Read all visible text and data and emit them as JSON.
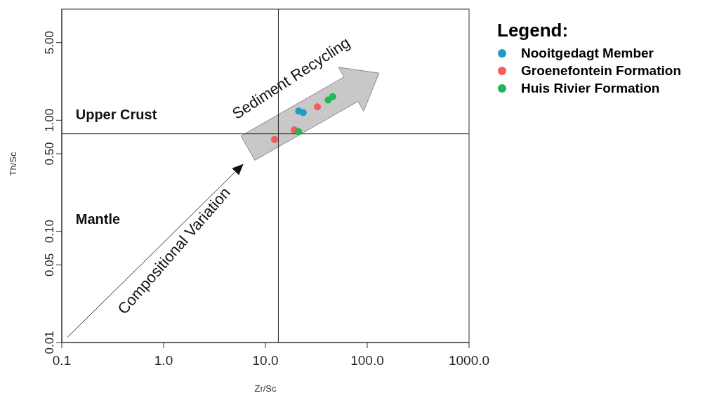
{
  "chart_data": {
    "type": "scatter",
    "xlabel": "Zr/Sc",
    "ylabel": "Th/Sc",
    "legend_title": "Legend:",
    "log": "xy",
    "marker": "circle",
    "legend": "top right",
    "xlim": [
      0.1,
      1000
    ],
    "xticks": [
      0.1,
      {
        "value": 1,
        "label": "1.0"
      },
      {
        "value": 10,
        "label": "10.0"
      },
      {
        "value": 100,
        "label": "100.0"
      },
      {
        "value": 1000,
        "label": "1000.0"
      }
    ],
    "ylim": [
      0.01,
      10
    ],
    "yticks": [
      0.01,
      0.05,
      {
        "value": 0.1,
        "label": "0.10"
      },
      {
        "value": 0.5,
        "label": "0.50"
      },
      {
        "value": 1,
        "label": "1.00"
      },
      {
        "value": 5,
        "label": "5.00"
      }
    ],
    "series": [
      {
        "name": "Nooitgedagt Member",
        "color": "#1f9cc4",
        "x": [
          21.2,
          23.5
        ],
        "values": [
          1.21,
          1.17
        ]
      },
      {
        "name": "Groenefontein Formation",
        "color": "#f45b5b",
        "x": [
          12.3,
          19.2,
          32.4
        ],
        "values": [
          0.67,
          0.82,
          1.32
        ]
      },
      {
        "name": "Huis Rivier Formation",
        "color": "#1db954",
        "x": [
          21.1,
          41.3,
          45.8
        ],
        "values": [
          0.79,
          1.52,
          1.63
        ]
      }
    ],
    "ref_lines": [
      {
        "axis": "x",
        "value": 13.4,
        "color": "#222222"
      },
      {
        "axis": "y",
        "value": 0.755,
        "color": "#222222"
      }
    ],
    "annotations": [
      "Upper Crust",
      "Mantle",
      "Compositional Variation",
      "Sediment Recycling"
    ]
  }
}
